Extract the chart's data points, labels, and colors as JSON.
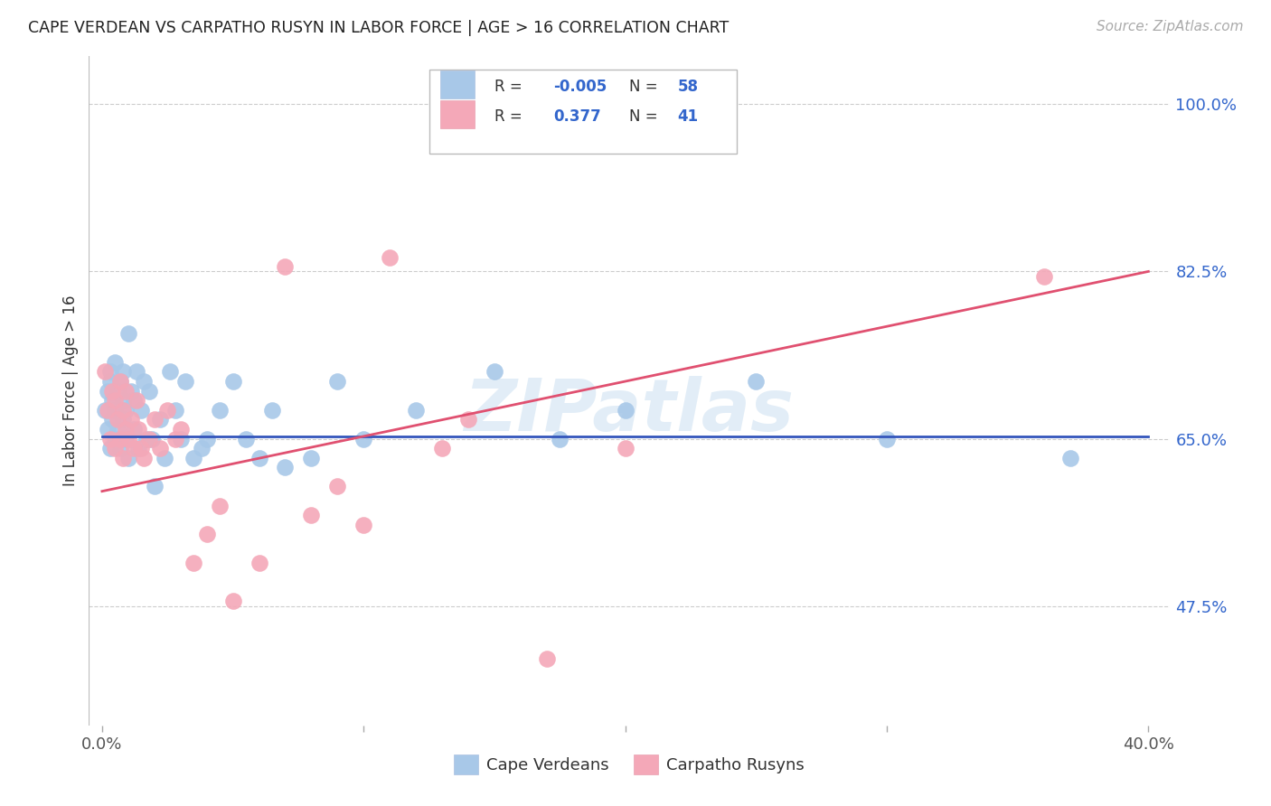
{
  "title": "CAPE VERDEAN VS CARPATHO RUSYN IN LABOR FORCE | AGE > 16 CORRELATION CHART",
  "source": "Source: ZipAtlas.com",
  "ylabel": "In Labor Force | Age > 16",
  "yticks": [
    "47.5%",
    "65.0%",
    "82.5%",
    "100.0%"
  ],
  "ytick_values": [
    0.475,
    0.65,
    0.825,
    1.0
  ],
  "xlim": [
    0.0,
    0.4
  ],
  "ylim": [
    0.35,
    1.05
  ],
  "r_cape_verdean": -0.005,
  "n_cape_verdean": 58,
  "r_carpatho_rusyn": 0.377,
  "n_carpatho_rusyn": 41,
  "blue_color": "#a8c8e8",
  "pink_color": "#f4a8b8",
  "blue_line_color": "#3355bb",
  "pink_line_color": "#e05070",
  "watermark": "ZIPatlas",
  "blue_line_y": [
    0.652,
    0.652
  ],
  "pink_line_y": [
    0.595,
    0.825
  ],
  "cape_verdean_x": [
    0.001,
    0.002,
    0.002,
    0.003,
    0.003,
    0.003,
    0.004,
    0.004,
    0.005,
    0.005,
    0.005,
    0.006,
    0.006,
    0.007,
    0.007,
    0.008,
    0.008,
    0.008,
    0.009,
    0.009,
    0.01,
    0.01,
    0.011,
    0.012,
    0.012,
    0.013,
    0.014,
    0.015,
    0.016,
    0.017,
    0.018,
    0.019,
    0.02,
    0.022,
    0.024,
    0.026,
    0.028,
    0.03,
    0.032,
    0.035,
    0.038,
    0.04,
    0.045,
    0.05,
    0.055,
    0.06,
    0.065,
    0.07,
    0.08,
    0.09,
    0.1,
    0.12,
    0.15,
    0.175,
    0.2,
    0.25,
    0.3,
    0.37
  ],
  "cape_verdean_y": [
    0.68,
    0.7,
    0.66,
    0.72,
    0.64,
    0.71,
    0.67,
    0.69,
    0.73,
    0.65,
    0.68,
    0.7,
    0.66,
    0.71,
    0.64,
    0.69,
    0.67,
    0.72,
    0.65,
    0.68,
    0.76,
    0.63,
    0.7,
    0.66,
    0.69,
    0.72,
    0.64,
    0.68,
    0.71,
    0.65,
    0.7,
    0.65,
    0.6,
    0.67,
    0.63,
    0.72,
    0.68,
    0.65,
    0.71,
    0.63,
    0.64,
    0.65,
    0.68,
    0.71,
    0.65,
    0.63,
    0.68,
    0.62,
    0.63,
    0.71,
    0.65,
    0.68,
    0.72,
    0.65,
    0.68,
    0.71,
    0.65,
    0.63
  ],
  "carpatho_rusyn_x": [
    0.001,
    0.002,
    0.003,
    0.004,
    0.005,
    0.005,
    0.006,
    0.007,
    0.007,
    0.008,
    0.008,
    0.009,
    0.009,
    0.01,
    0.011,
    0.012,
    0.013,
    0.014,
    0.015,
    0.016,
    0.018,
    0.02,
    0.022,
    0.025,
    0.028,
    0.03,
    0.035,
    0.04,
    0.045,
    0.05,
    0.06,
    0.07,
    0.08,
    0.09,
    0.1,
    0.11,
    0.13,
    0.14,
    0.17,
    0.2,
    0.36
  ],
  "carpatho_rusyn_y": [
    0.72,
    0.68,
    0.65,
    0.7,
    0.69,
    0.64,
    0.67,
    0.65,
    0.71,
    0.68,
    0.63,
    0.66,
    0.7,
    0.65,
    0.67,
    0.64,
    0.69,
    0.66,
    0.64,
    0.63,
    0.65,
    0.67,
    0.64,
    0.68,
    0.65,
    0.66,
    0.52,
    0.55,
    0.58,
    0.48,
    0.52,
    0.83,
    0.57,
    0.6,
    0.56,
    0.84,
    0.64,
    0.67,
    0.42,
    0.64,
    0.82
  ]
}
